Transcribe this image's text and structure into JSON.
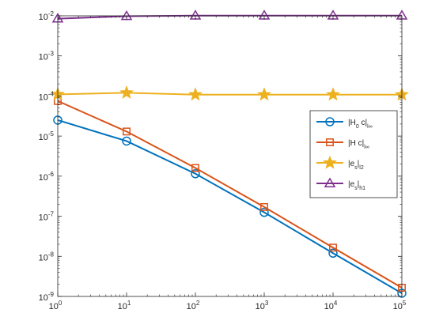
{
  "chart_data": {
    "type": "line",
    "x_scale": "log",
    "y_scale": "log",
    "xlim": [
      1,
      100000
    ],
    "ylim": [
      1e-09,
      0.01
    ],
    "x": [
      1,
      10,
      100,
      1000,
      10000,
      100000
    ],
    "x_ticks": [
      {
        "base": "10",
        "exp": "0"
      },
      {
        "base": "10",
        "exp": "1"
      },
      {
        "base": "10",
        "exp": "2"
      },
      {
        "base": "10",
        "exp": "3"
      },
      {
        "base": "10",
        "exp": "4"
      },
      {
        "base": "10",
        "exp": "5"
      }
    ],
    "y_ticks": [
      {
        "base": "10",
        "exp": "-9",
        "value": 1e-09
      },
      {
        "base": "10",
        "exp": "-8",
        "value": 1e-08
      },
      {
        "base": "10",
        "exp": "-7",
        "value": 1e-07
      },
      {
        "base": "10",
        "exp": "-6",
        "value": 1e-06
      },
      {
        "base": "10",
        "exp": "-5",
        "value": 1e-05
      },
      {
        "base": "10",
        "exp": "-4",
        "value": 0.0001
      },
      {
        "base": "10",
        "exp": "-3",
        "value": 0.001
      },
      {
        "base": "10",
        "exp": "-2",
        "value": 0.01
      }
    ],
    "grid": false,
    "legend_position": "right",
    "series": [
      {
        "name": "|H0 c|l∞",
        "legend_parts": [
          [
            "|H",
            ""
          ],
          [
            "0",
            "sub"
          ],
          [
            " c|",
            ""
          ],
          [
            "l∞",
            "sub"
          ]
        ],
        "color": "#0072BD",
        "marker": "circle",
        "values": [
          2.5e-05,
          7.5e-06,
          1.15e-06,
          1.25e-07,
          1.2e-08,
          1.2e-09
        ]
      },
      {
        "name": "|H c|l∞",
        "legend_parts": [
          [
            "|H c|",
            ""
          ],
          [
            "l∞",
            "sub"
          ]
        ],
        "color": "#D95319",
        "marker": "square",
        "values": [
          7.5e-05,
          1.3e-05,
          1.6e-06,
          1.7e-07,
          1.65e-08,
          1.65e-09
        ]
      },
      {
        "name": "|es|l2",
        "legend_parts": [
          [
            "|e",
            ""
          ],
          [
            "s",
            "sub"
          ],
          [
            "|",
            ""
          ],
          [
            "l2",
            "sub"
          ]
        ],
        "color": "#EDB120",
        "marker": "star",
        "values": [
          0.00011,
          0.00012,
          0.000108,
          0.000108,
          0.000108,
          0.000108
        ]
      },
      {
        "name": "|es|h1",
        "legend_parts": [
          [
            "|e",
            ""
          ],
          [
            "s",
            "sub"
          ],
          [
            "|",
            ""
          ],
          [
            "h1",
            "sub"
          ]
        ],
        "color": "#7E2F8E",
        "marker": "triangle",
        "values": [
          0.0085,
          0.0098,
          0.0101,
          0.0101,
          0.0101,
          0.0101
        ]
      }
    ]
  }
}
